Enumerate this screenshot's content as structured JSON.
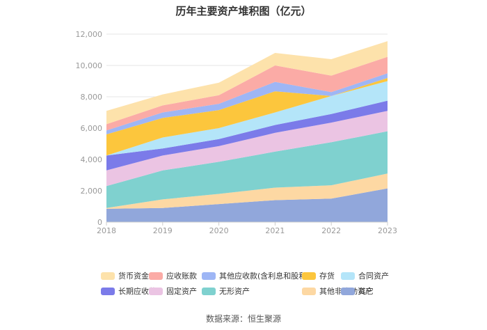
{
  "chart_data": {
    "type": "area",
    "stacked": true,
    "title": "历年主要资产堆积图（亿元）",
    "categories": [
      "2018",
      "2019",
      "2020",
      "2021",
      "2022",
      "2023"
    ],
    "ylim": [
      0,
      12000
    ],
    "yticks": [
      "0",
      "2,000",
      "4,000",
      "6,000",
      "8,000",
      "10,000",
      "12,000"
    ],
    "series": [
      {
        "name": "其它",
        "color": "#91a7db",
        "values": [
          850,
          900,
          1150,
          1400,
          1500,
          2150
        ]
      },
      {
        "name": "其他非流动资产",
        "color": "#fdd8a3",
        "values": [
          50,
          550,
          650,
          800,
          850,
          950
        ]
      },
      {
        "name": "无形资产",
        "color": "#7fd1cf",
        "values": [
          1400,
          1850,
          2050,
          2300,
          2750,
          2700
        ]
      },
      {
        "name": "固定资产",
        "color": "#ebc4e3",
        "values": [
          1000,
          950,
          1000,
          1200,
          1250,
          1300
        ]
      },
      {
        "name": "长期应收款",
        "color": "#7b7be9",
        "values": [
          950,
          450,
          450,
          500,
          550,
          650
        ]
      },
      {
        "name": "合同资产",
        "color": "#b4e5f9",
        "values": [
          0,
          700,
          700,
          800,
          1150,
          1250
        ]
      },
      {
        "name": "存货",
        "color": "#fcc63d",
        "values": [
          1350,
          1250,
          1150,
          1350,
          0,
          200
        ]
      },
      {
        "name": "其他应收款(含利息和股利)",
        "color": "#9eb6f5",
        "values": [
          250,
          350,
          400,
          600,
          250,
          300
        ]
      },
      {
        "name": "应收账款",
        "color": "#fbaba6",
        "values": [
          400,
          450,
          550,
          1050,
          1050,
          1050
        ]
      },
      {
        "name": "货币资金",
        "color": "#fde2ab",
        "values": [
          850,
          700,
          800,
          800,
          1050,
          1000
        ]
      }
    ],
    "legend_rows": [
      [
        "货币资金",
        "应收账款",
        "其他应收款(含利息和股利)",
        "存货",
        "合同资产"
      ],
      [
        "长期应收款",
        "固定资产",
        "无形资产",
        "其他非流动资产",
        "其它"
      ]
    ],
    "source": "数据来源：恒生聚源"
  }
}
